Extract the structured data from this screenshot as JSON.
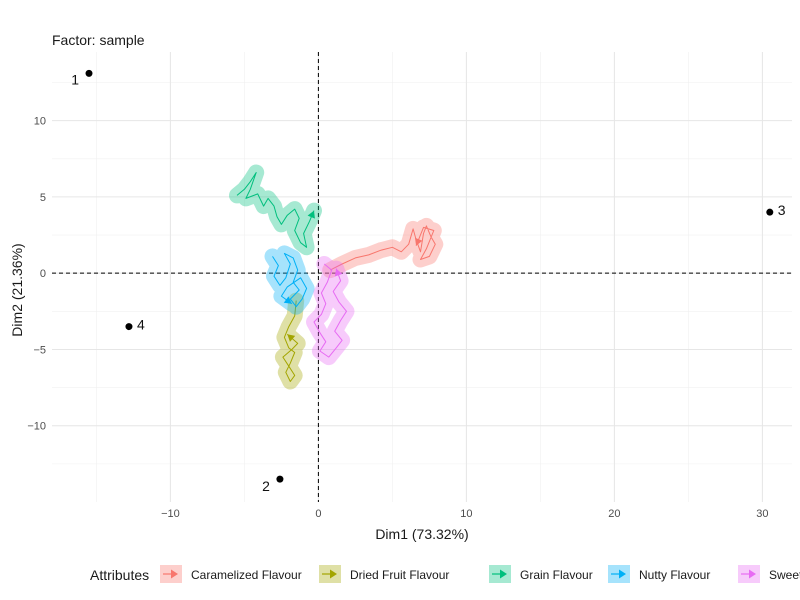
{
  "chart_data": {
    "type": "scatter",
    "title": "Factor: sample",
    "xlabel": "Dim1 (73.32%)",
    "ylabel": "Dim2 (21.36%)",
    "xlim": [
      -18.0,
      32.0
    ],
    "ylim": [
      -15.0,
      14.5
    ],
    "x_ticks": [
      -10,
      0,
      10,
      20,
      30
    ],
    "y_ticks": [
      10,
      5,
      0,
      -5,
      -10
    ],
    "grid": true,
    "reference_lines": {
      "x": 0,
      "y": 0
    },
    "points": [
      {
        "label": "1",
        "x": -15.5,
        "y": 13.1
      },
      {
        "label": "2",
        "x": -2.6,
        "y": -13.5
      },
      {
        "label": "3",
        "x": 30.5,
        "y": 4.0
      },
      {
        "label": "4",
        "x": -12.8,
        "y": -3.5
      }
    ],
    "legend": {
      "title": "Attributes",
      "position": "bottom"
    },
    "series": [
      {
        "name": "Caramelized Flavour",
        "color": "#F8766D",
        "path": [
          [
            0.8,
            0.2
          ],
          [
            1.6,
            0.6
          ],
          [
            2.5,
            1.0
          ],
          [
            3.4,
            1.2
          ],
          [
            4.2,
            1.5
          ],
          [
            5.0,
            1.7
          ],
          [
            5.6,
            1.4
          ],
          [
            6.1,
            1.9
          ],
          [
            6.4,
            2.9
          ],
          [
            6.6,
            2.2
          ],
          [
            6.9,
            1.4
          ],
          [
            7.1,
            2.6
          ],
          [
            7.3,
            3.1
          ],
          [
            7.6,
            2.4
          ],
          [
            7.9,
            1.9
          ],
          [
            7.5,
            1.1
          ],
          [
            6.9,
            0.9
          ],
          [
            7.3,
            1.6
          ],
          [
            7.8,
            2.8
          ],
          [
            7.1,
            3.0
          ],
          [
            6.6,
            1.8
          ]
        ]
      },
      {
        "name": "Dried Fruit Flavour",
        "color": "#A3A500",
        "path": [
          [
            -1.5,
            -1.8
          ],
          [
            -1.6,
            -2.8
          ],
          [
            -2.0,
            -3.5
          ],
          [
            -2.3,
            -4.2
          ],
          [
            -2.0,
            -4.9
          ],
          [
            -1.6,
            -5.2
          ],
          [
            -1.9,
            -5.9
          ],
          [
            -2.2,
            -6.5
          ],
          [
            -1.9,
            -7.1
          ],
          [
            -1.6,
            -6.7
          ],
          [
            -2.0,
            -6.1
          ],
          [
            -2.4,
            -5.5
          ],
          [
            -1.8,
            -5.0
          ],
          [
            -1.4,
            -4.6
          ],
          [
            -2.1,
            -4.0
          ]
        ]
      },
      {
        "name": "Grain Flavour",
        "color": "#00BF7D",
        "path": [
          [
            -5.5,
            5.1
          ],
          [
            -5.0,
            5.5
          ],
          [
            -4.6,
            6.0
          ],
          [
            -4.2,
            6.6
          ],
          [
            -4.6,
            5.5
          ],
          [
            -4.9,
            4.9
          ],
          [
            -4.1,
            5.2
          ],
          [
            -3.7,
            4.4
          ],
          [
            -3.4,
            4.9
          ],
          [
            -3.0,
            4.4
          ],
          [
            -2.8,
            3.7
          ],
          [
            -2.5,
            3.2
          ],
          [
            -2.1,
            3.8
          ],
          [
            -1.6,
            4.2
          ],
          [
            -1.3,
            3.6
          ],
          [
            -1.6,
            2.8
          ],
          [
            -1.2,
            2.0
          ],
          [
            -0.8,
            1.7
          ],
          [
            -1.0,
            2.6
          ],
          [
            -0.6,
            3.4
          ],
          [
            -0.3,
            4.1
          ]
        ]
      },
      {
        "name": "Nutty Flavour",
        "color": "#00B0F6",
        "path": [
          [
            -3.1,
            1.1
          ],
          [
            -2.7,
            0.5
          ],
          [
            -3.0,
            -0.2
          ],
          [
            -2.6,
            -0.8
          ],
          [
            -2.2,
            -0.3
          ],
          [
            -1.9,
            0.6
          ],
          [
            -2.3,
            1.3
          ],
          [
            -1.7,
            1.0
          ],
          [
            -1.4,
            0.2
          ],
          [
            -1.7,
            -0.6
          ],
          [
            -1.3,
            -1.1
          ],
          [
            -1.9,
            -1.7
          ],
          [
            -1.5,
            -2.2
          ],
          [
            -1.1,
            -1.7
          ],
          [
            -0.8,
            -1.0
          ],
          [
            -1.2,
            -0.3
          ],
          [
            -2.1,
            -0.9
          ],
          [
            -2.5,
            -1.5
          ],
          [
            -1.8,
            -2.0
          ]
        ]
      },
      {
        "name": "Sweetness",
        "color": "#E76BF3",
        "path": [
          [
            0.4,
            0.6
          ],
          [
            0.9,
            0.2
          ],
          [
            0.6,
            -0.6
          ],
          [
            0.2,
            -1.3
          ],
          [
            0.5,
            -2.0
          ],
          [
            0.2,
            -2.7
          ],
          [
            -0.3,
            -3.2
          ],
          [
            0.1,
            -3.9
          ],
          [
            0.5,
            -4.5
          ],
          [
            0.1,
            -5.1
          ],
          [
            0.7,
            -5.5
          ],
          [
            1.2,
            -4.9
          ],
          [
            1.6,
            -4.4
          ],
          [
            1.1,
            -3.8
          ],
          [
            1.5,
            -3.1
          ],
          [
            1.9,
            -2.5
          ],
          [
            1.4,
            -1.9
          ],
          [
            1.0,
            -1.2
          ],
          [
            1.5,
            -0.5
          ],
          [
            1.2,
            0.3
          ]
        ]
      }
    ]
  }
}
